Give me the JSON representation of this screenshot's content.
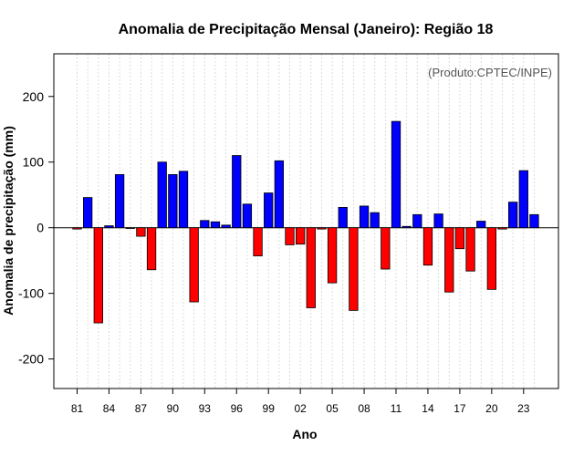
{
  "chart_data": {
    "type": "bar",
    "title": "Anomalia de Precipitação Mensal (Janeiro): Região 18",
    "xlabel": "Ano",
    "ylabel": "Anomalia de precipitação (mm)",
    "credit": "(Produto:CPTEC/INPE)",
    "ylim": [
      -245,
      265
    ],
    "yticks": [
      -200,
      -100,
      0,
      100,
      200
    ],
    "grid": "vertical dashed",
    "colors": {
      "positive": "#0000ff",
      "negative": "#ff0000",
      "zero_line": "#000000",
      "grid": "#d3d3d3"
    },
    "x": [
      1981,
      1982,
      1983,
      1984,
      1985,
      1986,
      1987,
      1988,
      1989,
      1990,
      1991,
      1992,
      1993,
      1994,
      1995,
      1996,
      1997,
      1998,
      1999,
      2000,
      2001,
      2002,
      2003,
      2004,
      2005,
      2006,
      2007,
      2008,
      2009,
      2010,
      2011,
      2012,
      2013,
      2014,
      2015,
      2016,
      2017,
      2018,
      2019,
      2020,
      2021,
      2022,
      2023,
      2024
    ],
    "values": [
      -2,
      46,
      -145,
      3,
      81,
      -1,
      -13,
      -64,
      100,
      81,
      86,
      -113,
      11,
      9,
      4,
      110,
      36,
      -43,
      53,
      102,
      -26,
      -25,
      -122,
      -2,
      -84,
      31,
      -126,
      33,
      23,
      -63,
      162,
      2,
      20,
      -57,
      21,
      -98,
      -32,
      -66,
      10,
      -94,
      -2,
      39,
      87,
      20
    ],
    "xtick_labels": [
      "81",
      "84",
      "87",
      "90",
      "93",
      "96",
      "99",
      "02",
      "05",
      "08",
      "11",
      "14",
      "17",
      "20",
      "23"
    ]
  }
}
